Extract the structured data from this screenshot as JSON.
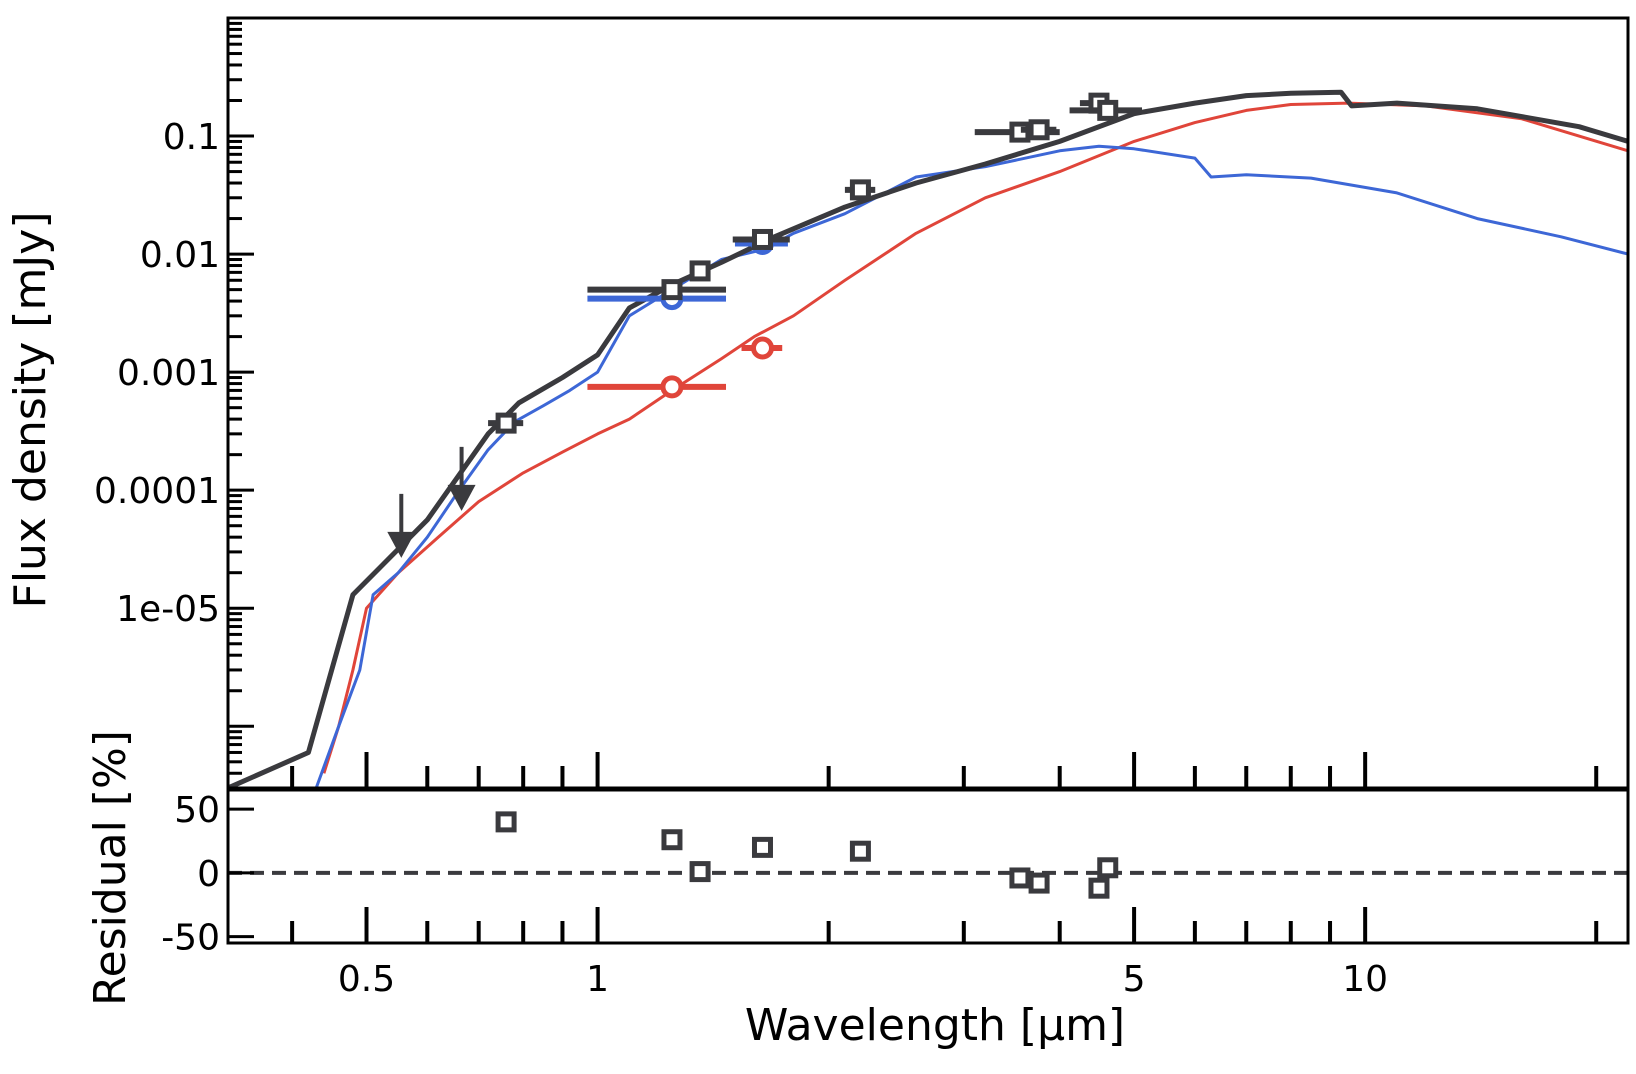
{
  "chart_data": {
    "type": "line",
    "x_scale": "log",
    "y_scale": "log",
    "xlim": [
      0.33,
      22
    ],
    "ylim": [
      3e-07,
      1.0
    ],
    "residual_ylim": [
      -55,
      65
    ],
    "xlabel": "Wavelength [μm]",
    "ylabel": "Flux density [mJy]",
    "residual_ylabel": "Residual [%]",
    "x_ticks": [
      {
        "value": 0.5,
        "label": "0.5"
      },
      {
        "value": 1,
        "label": "1"
      },
      {
        "value": 5,
        "label": "5"
      },
      {
        "value": 10,
        "label": "10"
      }
    ],
    "y_ticks": [
      {
        "value": 1e-05,
        "label": "1e-05"
      },
      {
        "value": 0.0001,
        "label": "0.0001"
      },
      {
        "value": 0.001,
        "label": "0.001"
      },
      {
        "value": 0.01,
        "label": "0.01"
      },
      {
        "value": 0.1,
        "label": "0.1"
      }
    ],
    "residual_ticks": [
      {
        "value": 50,
        "label": "50"
      },
      {
        "value": 0,
        "label": "0"
      },
      {
        "value": -50,
        "label": "-50"
      }
    ],
    "grid": false,
    "legend": "none",
    "colors": {
      "combined": "#3a3a3e",
      "blue_component": "#3d67d6",
      "red_component": "#e0453a"
    },
    "series": [
      {
        "key": "combined",
        "points": [
          [
            0.33,
            3e-07
          ],
          [
            0.42,
            6e-07
          ],
          [
            0.48,
            1.3e-05
          ],
          [
            0.6,
            5.6e-05
          ],
          [
            0.72,
            0.0003
          ],
          [
            0.79,
            0.00055
          ],
          [
            0.9,
            0.0009
          ],
          [
            1.0,
            0.0014
          ],
          [
            1.1,
            0.0035
          ],
          [
            1.25,
            0.0055
          ],
          [
            1.45,
            0.0085
          ],
          [
            1.7,
            0.014
          ],
          [
            2.1,
            0.025
          ],
          [
            2.6,
            0.04
          ],
          [
            3.2,
            0.058
          ],
          [
            4.0,
            0.09
          ],
          [
            5.0,
            0.155
          ],
          [
            6.0,
            0.19
          ],
          [
            7.0,
            0.22
          ],
          [
            8.0,
            0.23
          ],
          [
            9.3,
            0.235
          ],
          [
            9.6,
            0.18
          ],
          [
            11,
            0.19
          ],
          [
            14,
            0.17
          ],
          [
            19,
            0.12
          ],
          [
            22,
            0.09
          ]
        ]
      },
      {
        "key": "blue_component",
        "points": [
          [
            0.4,
            2.5e-07
          ],
          [
            0.43,
            3e-07
          ],
          [
            0.46,
            1e-06
          ],
          [
            0.49,
            3e-06
          ],
          [
            0.51,
            1.3e-05
          ],
          [
            0.55,
            2e-05
          ],
          [
            0.6,
            4e-05
          ],
          [
            0.66,
            0.0001
          ],
          [
            0.72,
            0.00022
          ],
          [
            0.78,
            0.00038
          ],
          [
            0.85,
            0.00052
          ],
          [
            0.92,
            0.0007
          ],
          [
            1.0,
            0.001
          ],
          [
            1.1,
            0.003
          ],
          [
            1.25,
            0.005
          ],
          [
            1.45,
            0.009
          ],
          [
            1.65,
            0.011
          ],
          [
            1.8,
            0.015
          ],
          [
            2.1,
            0.022
          ],
          [
            2.6,
            0.045
          ],
          [
            3.2,
            0.055
          ],
          [
            4.0,
            0.075
          ],
          [
            4.5,
            0.082
          ],
          [
            5.0,
            0.078
          ],
          [
            6.0,
            0.065
          ],
          [
            6.3,
            0.045
          ],
          [
            7.0,
            0.047
          ],
          [
            8.5,
            0.044
          ],
          [
            11,
            0.033
          ],
          [
            14,
            0.02
          ],
          [
            18,
            0.014
          ],
          [
            22,
            0.01
          ]
        ]
      },
      {
        "key": "red_component",
        "points": [
          [
            0.44,
            4e-07
          ],
          [
            0.46,
            1e-06
          ],
          [
            0.48,
            3e-06
          ],
          [
            0.5,
            1e-05
          ],
          [
            0.55,
            2e-05
          ],
          [
            0.62,
            4e-05
          ],
          [
            0.7,
            8e-05
          ],
          [
            0.8,
            0.00014
          ],
          [
            0.9,
            0.00021
          ],
          [
            1.0,
            0.0003
          ],
          [
            1.1,
            0.0004
          ],
          [
            1.25,
            0.0007
          ],
          [
            1.45,
            0.0013
          ],
          [
            1.6,
            0.002
          ],
          [
            1.8,
            0.003
          ],
          [
            2.1,
            0.006
          ],
          [
            2.6,
            0.015
          ],
          [
            3.2,
            0.03
          ],
          [
            4.0,
            0.05
          ],
          [
            5.0,
            0.09
          ],
          [
            6.0,
            0.13
          ],
          [
            7.0,
            0.165
          ],
          [
            8.0,
            0.185
          ],
          [
            9.5,
            0.19
          ],
          [
            12,
            0.18
          ],
          [
            16,
            0.14
          ],
          [
            22,
            0.075
          ]
        ]
      }
    ],
    "photometry_squares": [
      {
        "x": 0.76,
        "x_err": [
          0.04,
          0.04
        ],
        "y": 0.00037,
        "residual": 40
      },
      {
        "x": 1.25,
        "x_err": [
          0.28,
          0.22
        ],
        "y": 0.005,
        "residual": 26
      },
      {
        "x": 1.36,
        "x_err": [
          0.03,
          0.03
        ],
        "y": 0.0072,
        "residual": 1
      },
      {
        "x": 1.64,
        "x_err": [
          0.14,
          0.14
        ],
        "y": 0.0133,
        "residual": 20
      },
      {
        "x": 2.2,
        "x_err": [
          0.1,
          0.1
        ],
        "y": 0.035,
        "residual": 17
      },
      {
        "x": 3.55,
        "x_err": [
          0.45,
          0.45
        ],
        "y": 0.108,
        "residual": -4
      },
      {
        "x": 3.76,
        "x_err": [
          0.2,
          0.2
        ],
        "y": 0.113,
        "residual": -8
      },
      {
        "x": 4.5,
        "x_err": [
          0.25,
          0.25
        ],
        "y": 0.19,
        "residual": -12
      },
      {
        "x": 4.62,
        "x_err": [
          0.5,
          0.5
        ],
        "y": 0.165,
        "residual": 4
      }
    ],
    "photometry_circles": [
      {
        "component": "blue_component",
        "x": 1.25,
        "x_err": [
          0.28,
          0.22
        ],
        "y": 0.0042
      },
      {
        "component": "blue_component",
        "x": 1.64,
        "x_err": [
          0.13,
          0.13
        ],
        "y": 0.0123
      },
      {
        "component": "red_component",
        "x": 1.25,
        "x_err": [
          0.28,
          0.22
        ],
        "y": 0.00075
      },
      {
        "component": "red_component",
        "x": 1.64,
        "x_err": [
          0.1,
          0.1
        ],
        "y": 0.0016
      }
    ],
    "upper_limits": [
      {
        "x": 0.555,
        "y": 3e-05
      },
      {
        "x": 0.665,
        "y": 7.5e-05
      }
    ]
  }
}
